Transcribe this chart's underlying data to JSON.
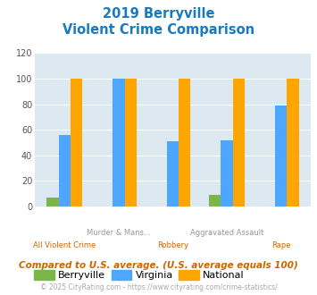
{
  "title_line1": "2019 Berryville",
  "title_line2": "Violent Crime Comparison",
  "title_color": "#1a7abf",
  "cat_line1": [
    "",
    "Murder & Mans...",
    "",
    "Aggravated Assault",
    ""
  ],
  "cat_line2": [
    "All Violent Crime",
    "",
    "Robbery",
    "",
    "Rape"
  ],
  "cat_line1_color": "#999999",
  "cat_line2_color": "#cc6600",
  "berryville": [
    7,
    0,
    0,
    9,
    0
  ],
  "virginia": [
    56,
    100,
    51,
    52,
    79
  ],
  "national": [
    100,
    100,
    100,
    100,
    100
  ],
  "berryville_color": "#7ab648",
  "virginia_color": "#4da6ff",
  "national_color": "#ffa500",
  "plot_bg_color": "#dce9f0",
  "ylim": [
    0,
    120
  ],
  "yticks": [
    0,
    20,
    40,
    60,
    80,
    100,
    120
  ],
  "bar_width": 0.22,
  "legend_labels": [
    "Berryville",
    "Virginia",
    "National"
  ],
  "legend_colors": [
    "#7ab648",
    "#4da6ff",
    "#ffa500"
  ],
  "footnote": "Compared to U.S. average. (U.S. average equals 100)",
  "footnote_color": "#cc6600",
  "copyright": "© 2025 CityRating.com - https://www.cityrating.com/crime-statistics/",
  "copyright_color": "#aaaaaa"
}
